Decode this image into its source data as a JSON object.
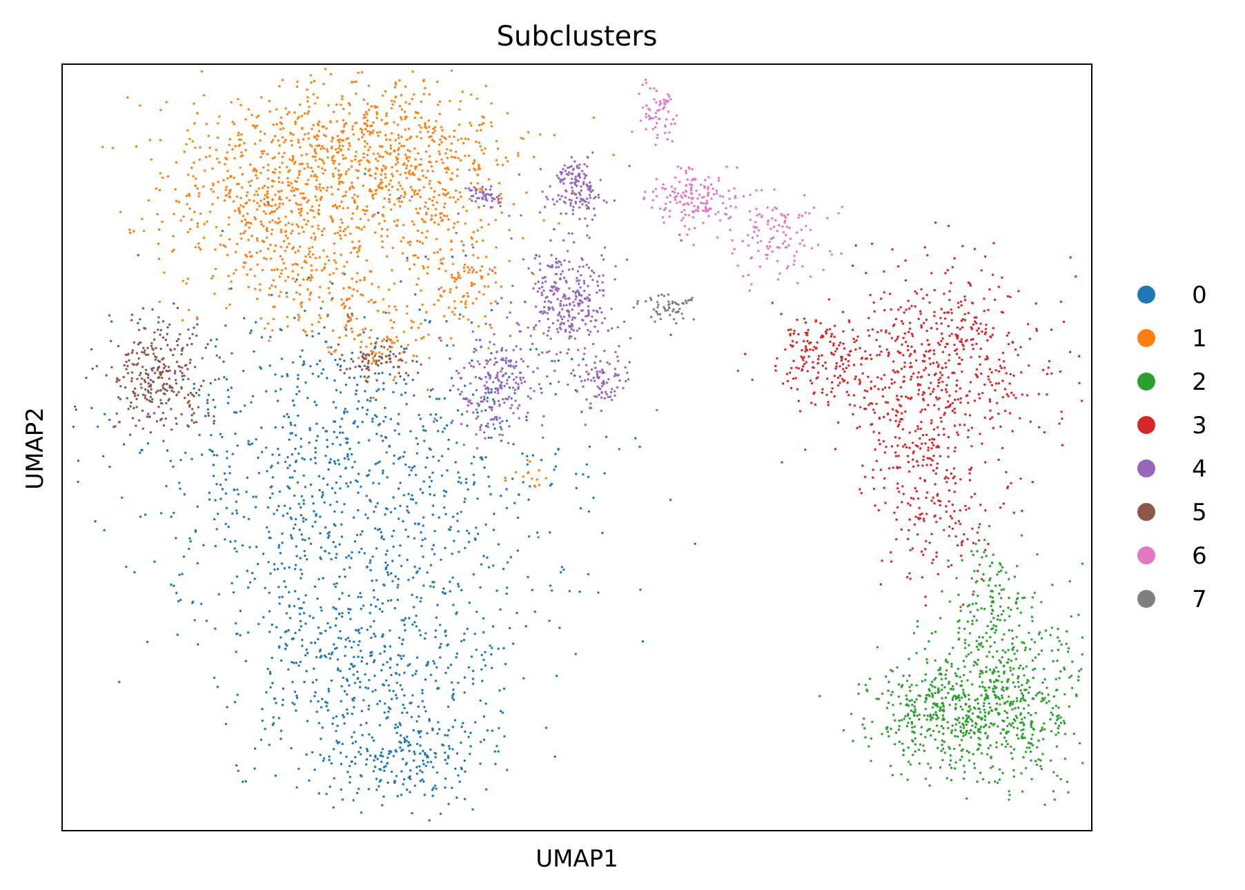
{
  "chart_data": {
    "type": "scatter",
    "title": "Subclusters",
    "xlabel": "UMAP1",
    "ylabel": "UMAP2",
    "ticks": "none",
    "grid": false,
    "legend_position": "right",
    "xlim": [
      0,
      100
    ],
    "ylim": [
      0,
      100
    ],
    "series": [
      {
        "name": "0",
        "color": "#1f77b4",
        "clusters": [
          {
            "x": 28.5,
            "y": 47,
            "sx": 11,
            "sy": 12,
            "n": 1000
          },
          {
            "x": 30,
            "y": 22,
            "sx": 7,
            "sy": 7,
            "n": 500
          },
          {
            "x": 33,
            "y": 9,
            "sx": 4,
            "sy": 3,
            "n": 200
          }
        ]
      },
      {
        "name": "1",
        "color": "#ff7f0e",
        "clusters": [
          {
            "x": 20,
            "y": 82,
            "sx": 6,
            "sy": 6,
            "n": 500
          },
          {
            "x": 29,
            "y": 89,
            "sx": 7,
            "sy": 5,
            "n": 500
          },
          {
            "x": 35,
            "y": 84,
            "sx": 5,
            "sy": 6,
            "n": 300
          },
          {
            "x": 25,
            "y": 72,
            "sx": 4,
            "sy": 4,
            "n": 150
          },
          {
            "x": 31,
            "y": 64,
            "sx": 2.5,
            "sy": 2.5,
            "n": 90
          },
          {
            "x": 39,
            "y": 71,
            "sx": 2,
            "sy": 3,
            "n": 90
          },
          {
            "x": 45.5,
            "y": 46,
            "sx": 1,
            "sy": 1.5,
            "n": 15
          }
        ]
      },
      {
        "name": "2",
        "color": "#2ca02c",
        "clusters": [
          {
            "x": 89,
            "y": 16,
            "sx": 5,
            "sy": 5,
            "n": 500
          },
          {
            "x": 86,
            "y": 15,
            "sx": 4,
            "sy": 3,
            "n": 180
          },
          {
            "x": 93,
            "y": 19,
            "sx": 4,
            "sy": 6,
            "n": 180
          },
          {
            "x": 90,
            "y": 30,
            "sx": 2,
            "sy": 4,
            "n": 120
          }
        ]
      },
      {
        "name": "3",
        "color": "#d62728",
        "clusters": [
          {
            "x": 86,
            "y": 62,
            "sx": 5,
            "sy": 6,
            "n": 500
          },
          {
            "x": 73.5,
            "y": 62,
            "sx": 2.5,
            "sy": 3,
            "n": 160
          },
          {
            "x": 85,
            "y": 44,
            "sx": 3,
            "sy": 6,
            "n": 200
          },
          {
            "x": 81,
            "y": 52,
            "sx": 3,
            "sy": 4,
            "n": 100
          }
        ]
      },
      {
        "name": "4",
        "color": "#9467bd",
        "clusters": [
          {
            "x": 49,
            "y": 69,
            "sx": 2,
            "sy": 3.5,
            "n": 260
          },
          {
            "x": 50,
            "y": 84,
            "sx": 1.3,
            "sy": 2,
            "n": 140
          },
          {
            "x": 41,
            "y": 83,
            "sx": 0.8,
            "sy": 0.8,
            "n": 45
          },
          {
            "x": 42,
            "y": 58,
            "sx": 2,
            "sy": 3,
            "n": 200
          },
          {
            "x": 52.5,
            "y": 58.5,
            "sx": 1.2,
            "sy": 1.6,
            "n": 80
          },
          {
            "x": 47,
            "y": 71,
            "sx": 6,
            "sy": 10,
            "n": 70
          }
        ]
      },
      {
        "name": "5",
        "color": "#8c564b",
        "clusters": [
          {
            "x": 9.5,
            "y": 59,
            "sx": 2.5,
            "sy": 4,
            "n": 280
          },
          {
            "x": 30.5,
            "y": 61,
            "sx": 1.8,
            "sy": 1.2,
            "n": 70
          }
        ]
      },
      {
        "name": "6",
        "color": "#e377c2",
        "clusters": [
          {
            "x": 58,
            "y": 94,
            "sx": 1,
            "sy": 2,
            "n": 60
          },
          {
            "x": 61,
            "y": 82.5,
            "sx": 2.5,
            "sy": 2,
            "n": 150
          },
          {
            "x": 69.5,
            "y": 77.5,
            "sx": 2.5,
            "sy": 3,
            "n": 120
          }
        ]
      },
      {
        "name": "7",
        "color": "#7f7f7f",
        "clusters": [
          {
            "x": 59,
            "y": 68,
            "sx": 1.3,
            "sy": 1,
            "n": 55
          }
        ]
      }
    ]
  }
}
